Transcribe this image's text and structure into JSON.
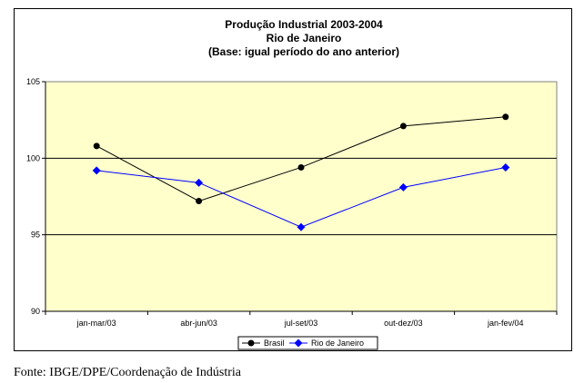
{
  "chart_data": {
    "type": "line",
    "title_lines": [
      "Produção Industrial 2003-2004",
      "Rio de Janeiro",
      "(Base: igual período do ano anterior)"
    ],
    "categories": [
      "jan-mar/03",
      "abr-jun/03",
      "jul-set/03",
      "out-dez/03",
      "jan-fev/04"
    ],
    "y_ticks": [
      "90",
      "95",
      "100",
      "105"
    ],
    "ylim": [
      90,
      105
    ],
    "grid": "horizontal at 95 and 100",
    "legend_position": "bottom",
    "series": [
      {
        "name": "Brasil",
        "color": "#000000",
        "marker": "circle",
        "values": [
          100.8,
          97.2,
          99.4,
          102.1,
          102.7
        ]
      },
      {
        "name": "Rio de Janeiro",
        "color": "#0000ff",
        "marker": "diamond",
        "values": [
          99.2,
          98.4,
          95.5,
          98.1,
          99.4
        ]
      }
    ],
    "plot_background": "#ffffcc"
  },
  "source_note": "Fonte: IBGE/DPE/Coordenação de Indústria"
}
